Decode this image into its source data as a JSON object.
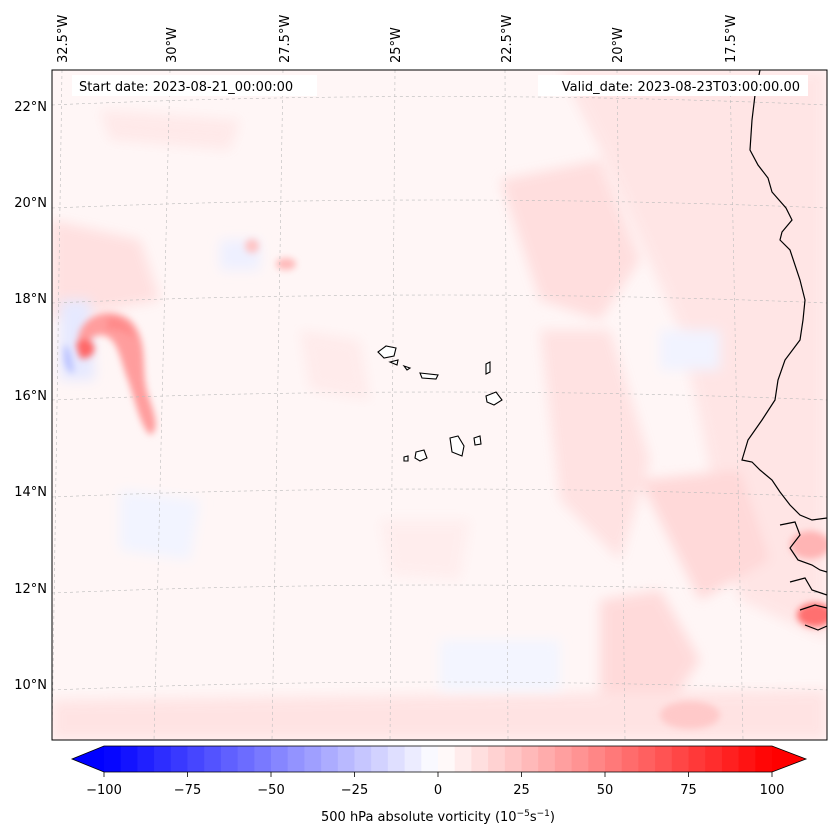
{
  "map": {
    "start_date": "Start date: 2023-08-21_00:00:00",
    "valid_date": "Valid_date: 2023-08-23T03:00:00.00",
    "lon_labels": [
      "32.5°W",
      "30°W",
      "27.5°W",
      "25°W",
      "22.5°W",
      "20°W",
      "17.5°W"
    ],
    "lat_labels": [
      "22°N",
      "20°N",
      "18°N",
      "16°N",
      "14°N",
      "12°N",
      "10°N"
    ]
  },
  "colorbar": {
    "label": "500 hPa absolute vorticity (10",
    "label_exp1": "−5",
    "label_mid": "s",
    "label_exp2": "−1",
    "label_end": ")",
    "ticks": [
      "−100",
      "−75",
      "−50",
      "−25",
      "0",
      "25",
      "50",
      "75",
      "100"
    ],
    "min": -100,
    "max": 100,
    "low_color": "#0000ff",
    "mid_color": "#ffffff",
    "high_color": "#ff0000"
  }
}
